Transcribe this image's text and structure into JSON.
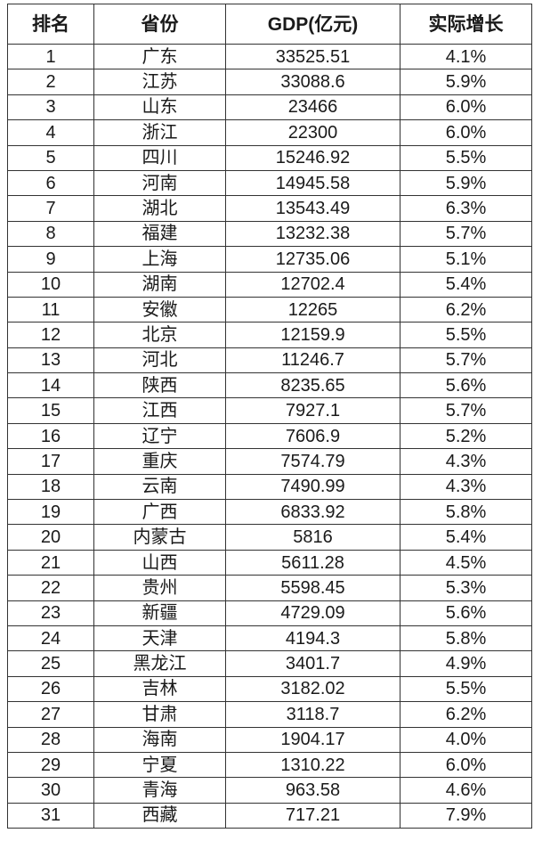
{
  "table": {
    "headers": [
      "排名",
      "省份",
      "GDP(亿元)",
      "实际增长"
    ],
    "rows": [
      [
        "1",
        "广东",
        "33525.51",
        "4.1%"
      ],
      [
        "2",
        "江苏",
        "33088.6",
        "5.9%"
      ],
      [
        "3",
        "山东",
        "23466",
        "6.0%"
      ],
      [
        "4",
        "浙江",
        "22300",
        "6.0%"
      ],
      [
        "5",
        "四川",
        "15246.92",
        "5.5%"
      ],
      [
        "6",
        "河南",
        "14945.58",
        "5.9%"
      ],
      [
        "7",
        "湖北",
        "13543.49",
        "6.3%"
      ],
      [
        "8",
        "福建",
        "13232.38",
        "5.7%"
      ],
      [
        "9",
        "上海",
        "12735.06",
        "5.1%"
      ],
      [
        "10",
        "湖南",
        "12702.4",
        "5.4%"
      ],
      [
        "11",
        "安徽",
        "12265",
        "6.2%"
      ],
      [
        "12",
        "北京",
        "12159.9",
        "5.5%"
      ],
      [
        "13",
        "河北",
        "11246.7",
        "5.7%"
      ],
      [
        "14",
        "陕西",
        "8235.65",
        "5.6%"
      ],
      [
        "15",
        "江西",
        "7927.1",
        "5.7%"
      ],
      [
        "16",
        "辽宁",
        "7606.9",
        "5.2%"
      ],
      [
        "17",
        "重庆",
        "7574.79",
        "4.3%"
      ],
      [
        "18",
        "云南",
        "7490.99",
        "4.3%"
      ],
      [
        "19",
        "广西",
        "6833.92",
        "5.8%"
      ],
      [
        "20",
        "内蒙古",
        "5816",
        "5.4%"
      ],
      [
        "21",
        "山西",
        "5611.28",
        "4.5%"
      ],
      [
        "22",
        "贵州",
        "5598.45",
        "5.3%"
      ],
      [
        "23",
        "新疆",
        "4729.09",
        "5.6%"
      ],
      [
        "24",
        "天津",
        "4194.3",
        "5.8%"
      ],
      [
        "25",
        "黑龙江",
        "3401.7",
        "4.9%"
      ],
      [
        "26",
        "吉林",
        "3182.02",
        "5.5%"
      ],
      [
        "27",
        "甘肃",
        "3118.7",
        "6.2%"
      ],
      [
        "28",
        "海南",
        "1904.17",
        "4.0%"
      ],
      [
        "29",
        "宁夏",
        "1310.22",
        "6.0%"
      ],
      [
        "30",
        "青海",
        "963.58",
        "4.6%"
      ],
      [
        "31",
        "西藏",
        "717.21",
        "7.9%"
      ]
    ]
  }
}
